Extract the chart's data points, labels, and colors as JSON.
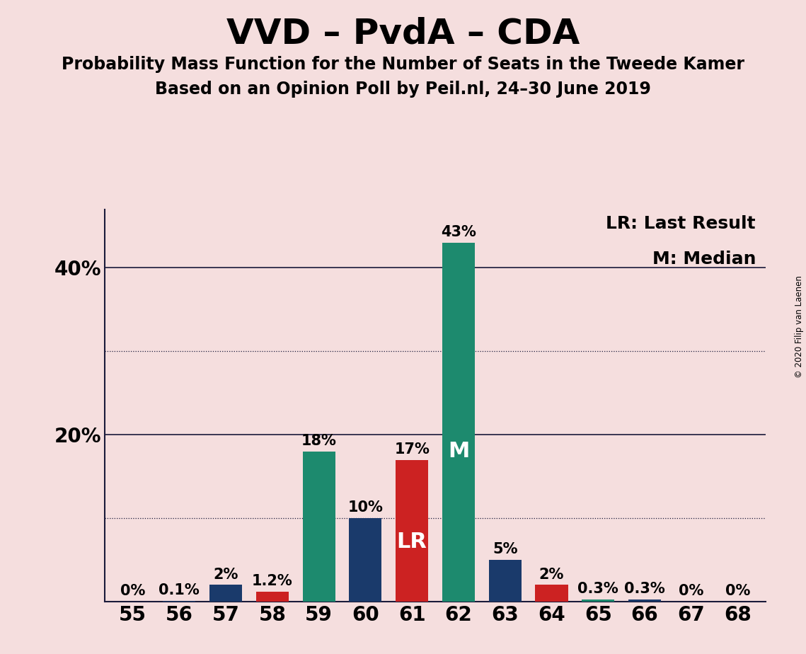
{
  "title": "VVD – PvdA – CDA",
  "subtitle1": "Probability Mass Function for the Number of Seats in the Tweede Kamer",
  "subtitle2": "Based on an Opinion Poll by Peil.nl, 24–30 June 2019",
  "copyright": "© 2020 Filip van Laenen",
  "legend_lr": "LR: Last Result",
  "legend_m": "M: Median",
  "seats": [
    55,
    56,
    57,
    58,
    59,
    60,
    61,
    62,
    63,
    64,
    65,
    66,
    67,
    68
  ],
  "probabilities": [
    0.0,
    0.1,
    2.0,
    1.2,
    18.0,
    10.0,
    17.0,
    43.0,
    5.0,
    2.0,
    0.3,
    0.3,
    0.0,
    0.0
  ],
  "labels": [
    "0%",
    "0.1%",
    "2%",
    "1.2%",
    "18%",
    "10%",
    "17%",
    "43%",
    "5%",
    "2%",
    "0.3%",
    "0.3%",
    "0%",
    "0%"
  ],
  "bar_colors": [
    "#1a3a6b",
    "#1a3a6b",
    "#1a3a6b",
    "#cc2222",
    "#1d8a6e",
    "#1a3a6b",
    "#cc2222",
    "#1d8a6e",
    "#1a3a6b",
    "#cc2222",
    "#1d8a6e",
    "#1a3a6b",
    "#1a3a6b",
    "#1a3a6b"
  ],
  "bar_labels_inside": {
    "61": "LR",
    "62": "M"
  },
  "background_color": "#f5dede",
  "solid_lines": [
    20,
    40
  ],
  "dotted_lines": [
    10,
    30
  ],
  "ytick_positions": [
    20,
    40
  ],
  "ytick_labels": [
    "20%",
    "40%"
  ],
  "ylim": [
    0,
    47
  ],
  "title_fontsize": 36,
  "subtitle_fontsize": 17,
  "axis_label_fontsize": 20,
  "bar_label_fontsize": 15,
  "inside_label_fontsize": 22,
  "legend_fontsize": 18
}
